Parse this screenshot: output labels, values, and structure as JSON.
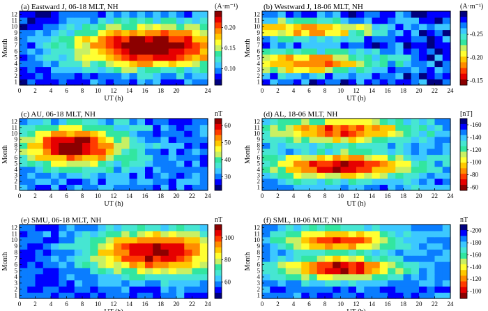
{
  "colormap": [
    "#00007f",
    "#0000ff",
    "#0a7dff",
    "#3cc8ff",
    "#46e6d2",
    "#32e6a0",
    "#c8f064",
    "#ffff32",
    "#ffc800",
    "#ff8c00",
    "#ff3c00",
    "#e60000",
    "#8c0000"
  ],
  "chart_data": [
    {
      "id": "a",
      "type": "heatmap",
      "title": "(a)   Eastward J, 06-18 MLT, NH",
      "xlabel": "",
      "ylabel": "Month",
      "x_ticks": [
        "0",
        "2",
        "4",
        "6",
        "8",
        "10",
        "12",
        "14",
        "16",
        "18",
        "20",
        "24"
      ],
      "y_ticks": [
        "1",
        "2",
        "3",
        "4",
        "5",
        "6",
        "7",
        "8",
        "9",
        "10",
        "11",
        "12"
      ],
      "colorbar": {
        "unit": "(A·m⁻¹)",
        "min": 0.06,
        "max": 0.24,
        "ticks": [
          0.1,
          0.15,
          0.2
        ],
        "tick_labels": [
          "0.10",
          "0.15",
          "0.20"
        ],
        "invert": false
      },
      "field": {
        "kind": "blob",
        "cx": 17,
        "cy": 6.8,
        "sx": 7.5,
        "sy": 2.6,
        "base": 0.08,
        "amp": 0.17,
        "noise": 0.015,
        "seed": 3
      }
    },
    {
      "id": "b",
      "type": "heatmap",
      "title": "(b)   Westward J, 18-06 MLT, NH",
      "xlabel": "",
      "ylabel": "Month",
      "x_ticks": [
        "0",
        "2",
        "4",
        "6",
        "8",
        "10",
        "12",
        "14",
        "16",
        "18",
        "20",
        "22",
        "24"
      ],
      "y_ticks": [
        "1",
        "2",
        "3",
        "4",
        "5",
        "6",
        "7",
        "8",
        "9",
        "10",
        "11",
        "12"
      ],
      "colorbar": {
        "unit": "(A·m⁻¹)",
        "min": -0.3,
        "max": -0.14,
        "ticks": [
          -0.25,
          -0.2,
          -0.15
        ],
        "tick_labels": [
          "-0.25",
          "-0.20",
          "-0.15"
        ],
        "invert": true
      },
      "field": {
        "kind": "double",
        "cx": 5,
        "cy": 4.2,
        "cy2": 9.5,
        "sx": 7,
        "sy": 1.2,
        "base": -0.16,
        "amp": -0.11,
        "noise": 0.02,
        "seed": 7
      }
    },
    {
      "id": "c",
      "type": "heatmap",
      "title": "(c)   AU, 06-18 MLT, NH",
      "xlabel": "",
      "ylabel": "Month",
      "x_ticks": [
        "0",
        "2",
        "4",
        "6",
        "8",
        "10",
        "12",
        "14",
        "16",
        "18",
        "20",
        "22",
        "24"
      ],
      "y_ticks": [
        "1",
        "2",
        "3",
        "4",
        "5",
        "6",
        "7",
        "8",
        "9",
        "10",
        "11",
        "12"
      ],
      "colorbar": {
        "unit": "nT",
        "min": 22,
        "max": 64,
        "ticks": [
          30,
          40,
          50,
          60
        ],
        "tick_labels": [
          "30",
          "40",
          "50",
          "60"
        ],
        "invert": false
      },
      "field": {
        "kind": "blob",
        "cx": 7,
        "cy": 7.8,
        "sx": 4.5,
        "sy": 2.3,
        "base": 30,
        "amp": 34,
        "noise": 4,
        "seed": 11
      }
    },
    {
      "id": "d",
      "type": "heatmap",
      "title": "(d)   AL, 18-06 MLT, NH",
      "xlabel": "",
      "ylabel": "Month",
      "x_ticks": [
        "0",
        "2",
        "4",
        "6",
        "8",
        "10",
        "12",
        "14",
        "16",
        "18",
        "20",
        "22",
        "24"
      ],
      "y_ticks": [
        "1",
        "2",
        "3",
        "4",
        "5",
        "6",
        "7",
        "8",
        "9",
        "10",
        "11",
        "12"
      ],
      "colorbar": {
        "unit": "[nT]",
        "min": -170,
        "max": -55,
        "ticks": [
          -160,
          -140,
          -120,
          -100,
          -80,
          -60
        ],
        "tick_labels": [
          "-160",
          "-140",
          "-120",
          "-100",
          "-80",
          "-60"
        ],
        "invert": true
      },
      "field": {
        "kind": "double",
        "cx": 10,
        "cy": 4.6,
        "cy2": 10.5,
        "sx": 6,
        "sy": 1.4,
        "base": -80,
        "amp": -85,
        "noise": 10,
        "seed": 19
      }
    },
    {
      "id": "e",
      "type": "heatmap",
      "title": "(e)   SMU, 06-18 MLT, NH",
      "xlabel": "UT (h)",
      "ylabel": "Month",
      "x_ticks": [
        "0",
        "2",
        "4",
        "6",
        "8",
        "10",
        "12",
        "14",
        "16",
        "18",
        "20",
        "22",
        "24"
      ],
      "y_ticks": [
        "1",
        "2",
        "3",
        "4",
        "5",
        "6",
        "7",
        "8",
        "9",
        "10",
        "11",
        "12"
      ],
      "colorbar": {
        "unit": "nT",
        "min": 45,
        "max": 112,
        "ticks": [
          60,
          80,
          100
        ],
        "tick_labels": [
          "60",
          "80",
          "100"
        ],
        "invert": false
      },
      "field": {
        "kind": "blob",
        "cx": 17.5,
        "cy": 8,
        "sx": 6,
        "sy": 2.5,
        "base": 55,
        "amp": 55,
        "noise": 5,
        "seed": 23
      }
    },
    {
      "id": "f",
      "type": "heatmap",
      "title": "(f)   SML, 18-06 MLT, NH",
      "xlabel": "UT (h)",
      "ylabel": "Month",
      "x_ticks": [
        "0",
        "2",
        "4",
        "6",
        "8",
        "10",
        "12",
        "14",
        "16",
        "18",
        "20",
        "22",
        "24"
      ],
      "y_ticks": [
        "1",
        "2",
        "3",
        "4",
        "5",
        "6",
        "7",
        "8",
        "9",
        "10",
        "11",
        "12"
      ],
      "colorbar": {
        "unit": "nT",
        "min": -210,
        "max": -88,
        "ticks": [
          -200,
          -180,
          -160,
          -140,
          -120,
          -100
        ],
        "tick_labels": [
          "-200",
          "-180",
          "-160",
          "-140",
          "-120",
          "-100"
        ],
        "invert": true
      },
      "field": {
        "kind": "double",
        "cx": 10,
        "cy": 5.5,
        "cy2": 10,
        "sx": 5,
        "sy": 1.3,
        "base": -110,
        "amp": -95,
        "noise": 8,
        "seed": 31
      }
    }
  ]
}
